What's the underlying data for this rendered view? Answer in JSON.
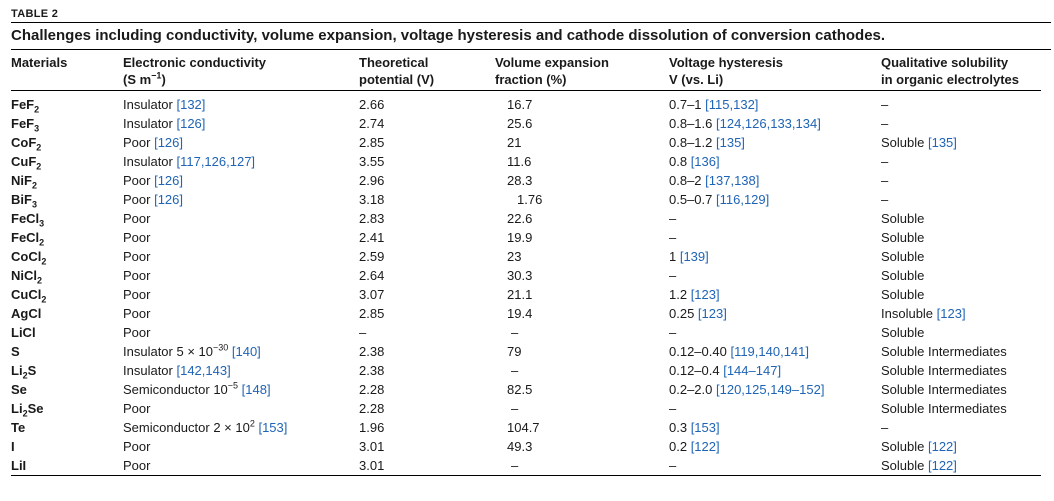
{
  "table_label": "TABLE 2",
  "caption": "Challenges including conductivity, volume expansion, voltage hysteresis and cathode dissolution of conversion cathodes.",
  "headers": {
    "materials": "Materials",
    "conductivity_1": "Electronic conductivity",
    "conductivity_2": "(S m",
    "conductivity_2_sup": "−1",
    "conductivity_2_end": ")",
    "potential_1": "Theoretical",
    "potential_2": "potential (V)",
    "volume_1": "Volume expansion",
    "volume_2": "fraction (%)",
    "hysteresis_1": "Voltage hysteresis",
    "hysteresis_2": "V (vs. Li)",
    "solubility_1": "Qualitative solubility",
    "solubility_2": "in organic electrolytes"
  },
  "rows": [
    {
      "m": "FeF",
      "m_sub": "2",
      "cond": "Insulator ",
      "cond_ref": "[132]",
      "pot": "2.66",
      "vol": "16.7",
      "hyst": "0.7–1 ",
      "hyst_ref": "[115,132]",
      "sol": "–",
      "sol_ref": ""
    },
    {
      "m": "FeF",
      "m_sub": "3",
      "cond": "Insulator ",
      "cond_ref": "[126]",
      "pot": "2.74",
      "vol": "25.6",
      "hyst": "0.8–1.6 ",
      "hyst_ref": "[124,126,133,134]",
      "sol": "–",
      "sol_ref": ""
    },
    {
      "m": "CoF",
      "m_sub": "2",
      "cond": "Poor ",
      "cond_ref": "[126]",
      "pot": "2.85",
      "vol": "21",
      "hyst": "0.8–1.2 ",
      "hyst_ref": "[135]",
      "sol": "Soluble ",
      "sol_ref": "[135]"
    },
    {
      "m": "CuF",
      "m_sub": "2",
      "cond": "Insulator ",
      "cond_ref": "[117,126,127]",
      "pot": "3.55",
      "vol": "11.6",
      "hyst": "0.8 ",
      "hyst_ref": "[136]",
      "sol": "–",
      "sol_ref": ""
    },
    {
      "m": "NiF",
      "m_sub": "2",
      "cond": "Poor ",
      "cond_ref": "[126]",
      "pot": "2.96",
      "vol": "28.3",
      "hyst": "0.8–2 ",
      "hyst_ref": "[137,138]",
      "sol": "–",
      "sol_ref": ""
    },
    {
      "m": "BiF",
      "m_sub": "3",
      "cond": "Poor ",
      "cond_ref": "[126]",
      "pot": "3.18",
      "vol": "1.76",
      "hyst": "0.5–0.7 ",
      "hyst_ref": "[116,129]",
      "sol": "–",
      "sol_ref": ""
    },
    {
      "m": "FeCl",
      "m_sub": "3",
      "cond": "Poor",
      "cond_ref": "",
      "pot": "2.83",
      "vol": "22.6",
      "hyst": "–",
      "hyst_ref": "",
      "sol": "Soluble",
      "sol_ref": ""
    },
    {
      "m": "FeCl",
      "m_sub": "2",
      "cond": "Poor",
      "cond_ref": "",
      "pot": "2.41",
      "vol": "19.9",
      "hyst": "–",
      "hyst_ref": "",
      "sol": "Soluble",
      "sol_ref": ""
    },
    {
      "m": "CoCl",
      "m_sub": "2",
      "cond": "Poor",
      "cond_ref": "",
      "pot": "2.59",
      "vol": "23",
      "hyst": "1 ",
      "hyst_ref": "[139]",
      "sol": "Soluble",
      "sol_ref": ""
    },
    {
      "m": "NiCl",
      "m_sub": "2",
      "cond": "Poor",
      "cond_ref": "",
      "pot": "2.64",
      "vol": "30.3",
      "hyst": "–",
      "hyst_ref": "",
      "sol": "Soluble",
      "sol_ref": ""
    },
    {
      "m": "CuCl",
      "m_sub": "2",
      "cond": "Poor",
      "cond_ref": "",
      "pot": "3.07",
      "vol": "21.1",
      "hyst": "1.2 ",
      "hyst_ref": "[123]",
      "sol": "Soluble",
      "sol_ref": ""
    },
    {
      "m": "AgCl",
      "m_sub": "",
      "cond": "Poor",
      "cond_ref": "",
      "pot": "2.85",
      "vol": "19.4",
      "hyst": "0.25 ",
      "hyst_ref": "[123]",
      "sol": "Insoluble ",
      "sol_ref": "[123]"
    },
    {
      "m": "LiCl",
      "m_sub": "",
      "cond": "Poor",
      "cond_ref": "",
      "pot": "–",
      "vol": "–",
      "hyst": "–",
      "hyst_ref": "",
      "sol": "Soluble",
      "sol_ref": ""
    },
    {
      "m": "S",
      "m_sub": "",
      "cond": "Insulator 5 × 10",
      "cond_sup": "−30",
      "cond_ref": " [140]",
      "pot": "2.38",
      "vol": "79",
      "hyst": "0.12–0.40 ",
      "hyst_ref": "[119,140,141]",
      "sol": "Soluble Intermediates",
      "sol_ref": ""
    },
    {
      "m": "Li",
      "m_sub": "2",
      "m_after": "S",
      "cond": "Insulator ",
      "cond_ref": "[142,143]",
      "pot": "2.38",
      "vol": "–",
      "hyst": "0.12–0.4 ",
      "hyst_ref": "[144–147]",
      "sol": "Soluble Intermediates",
      "sol_ref": ""
    },
    {
      "m": "Se",
      "m_sub": "",
      "cond": "Semiconductor 10",
      "cond_sup": "−5",
      "cond_ref": " [148]",
      "pot": "2.28",
      "vol": "82.5",
      "hyst": "0.2–2.0 ",
      "hyst_ref": "[120,125,149–152]",
      "sol": "Soluble Intermediates",
      "sol_ref": ""
    },
    {
      "m": "Li",
      "m_sub": "2",
      "m_after": "Se",
      "cond": "Poor",
      "cond_ref": "",
      "pot": "2.28",
      "vol": "–",
      "hyst": "–",
      "hyst_ref": "",
      "sol": "Soluble Intermediates",
      "sol_ref": ""
    },
    {
      "m": "Te",
      "m_sub": "",
      "cond": "Semiconductor 2 × 10",
      "cond_sup": "2",
      "cond_ref": " [153]",
      "pot": "1.96",
      "vol": "104.7",
      "hyst": "0.3 ",
      "hyst_ref": "[153]",
      "sol": "–",
      "sol_ref": ""
    },
    {
      "m": "I",
      "m_sub": "",
      "cond": "Poor",
      "cond_ref": "",
      "pot": "3.01",
      "vol": "49.3",
      "hyst": "0.2 ",
      "hyst_ref": "[122]",
      "sol": "Soluble ",
      "sol_ref": "[122]"
    },
    {
      "m": "LiI",
      "m_sub": "",
      "cond": "Poor",
      "cond_ref": "",
      "pot": "3.01",
      "vol": "–",
      "hyst": "–",
      "hyst_ref": "",
      "sol": "Soluble ",
      "sol_ref": "[122]"
    }
  ]
}
